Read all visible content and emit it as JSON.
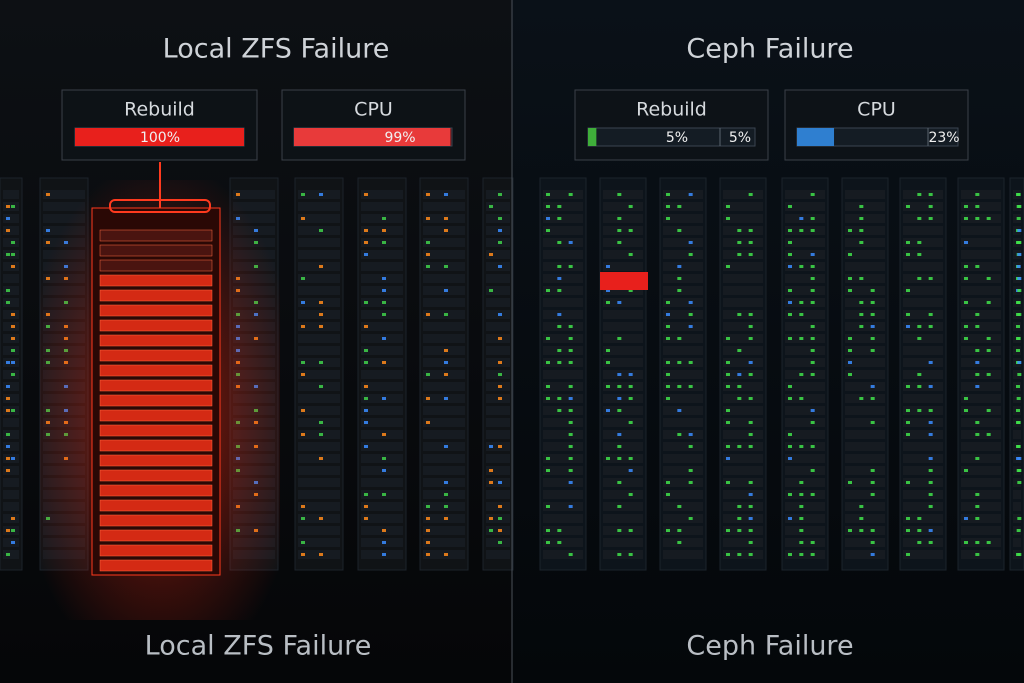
{
  "panels": [
    {
      "title": "Local ZFS Failure",
      "caption": "Local ZFS Failure",
      "metrics": [
        {
          "name": "Rebuild",
          "value": 100,
          "labels": [
            "100%"
          ],
          "color": "#e8201c"
        },
        {
          "name": "CPU",
          "value": 99,
          "labels": [
            "99%"
          ],
          "color": "#e83a3a"
        }
      ]
    },
    {
      "title": "Ceph Failure",
      "caption": "Ceph Failure",
      "metrics": [
        {
          "name": "Rebuild",
          "value": 5,
          "labels": [
            "5%",
            "5%"
          ],
          "color": "#3fae3a"
        },
        {
          "name": "CPU",
          "value": 23,
          "labels": [
            "23%"
          ],
          "color": "#2f7fd0"
        }
      ]
    }
  ]
}
